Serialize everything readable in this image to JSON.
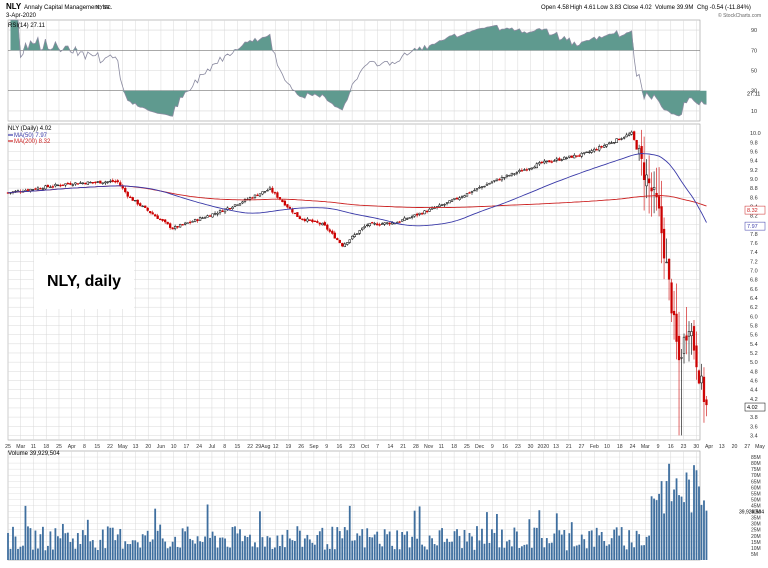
{
  "header": {
    "symbol": "NLY",
    "company": "Annaly Capital Management, Inc.",
    "exchange": "NYSE",
    "date": "3-Apr-2020",
    "open": "Open 4.58",
    "high": "High 4.61",
    "low": "Low 3.83",
    "close": "Close 4.02",
    "volume": "Volume 39.9M",
    "change": "Chg -0.54 (-11.84%)",
    "watermark": "© StockCharts.com"
  },
  "annotation": "NLY, daily",
  "colors": {
    "up": "#000000",
    "down": "#cc0000",
    "ma50": "#3a3aa8",
    "ma200": "#cc2222",
    "rsi_line": "#8a8aa0",
    "rsi_fill": "#5f9a8f",
    "volume_bar": "#3f6f9f",
    "grid": "#d8d8d8",
    "panel_border": "#999999"
  },
  "chart_data": {
    "type": "candlestick",
    "title": "NLY (Daily) 4.02",
    "price_axis": {
      "ylim": [
        3.3,
        10.2
      ],
      "ticks": [
        "10.0",
        "9.8",
        "9.6",
        "9.4",
        "9.2",
        "9.0",
        "8.8",
        "8.6",
        "8.4",
        "8.2",
        "8.0",
        "7.8",
        "7.6",
        "7.4",
        "7.2",
        "7.0",
        "6.8",
        "6.6",
        "6.4",
        "6.2",
        "6.0",
        "5.8",
        "5.6",
        "5.4",
        "5.2",
        "5.0",
        "4.8",
        "4.6",
        "4.4",
        "4.2",
        "4.0",
        "3.8",
        "3.6",
        "3.4"
      ],
      "markers": [
        {
          "label": "8.32",
          "value": 8.32,
          "color": "#cc2222"
        },
        {
          "label": "7.97",
          "value": 7.97,
          "color": "#3a3aa8"
        },
        {
          "label": "4.02",
          "value": 4.02,
          "color": "#000000"
        }
      ]
    },
    "x_axis": {
      "labels": [
        "25",
        "Mar",
        "11",
        "18",
        "25",
        "Apr",
        "8",
        "15",
        "22",
        "May",
        "13",
        "20",
        "Jun",
        "10",
        "17",
        "24",
        "Jul",
        "8",
        "15",
        "22",
        "29Aug",
        "12",
        "19",
        "26",
        "Sep",
        "9",
        "16",
        "23",
        "Oct",
        "7",
        "14",
        "21",
        "28",
        "Nov",
        "11",
        "18",
        "25",
        "Dec",
        "9",
        "16",
        "23",
        "30",
        "2020",
        "13",
        "21",
        "27",
        "Feb",
        "10",
        "18",
        "24",
        "Mar",
        "9",
        "16",
        "23",
        "30",
        "Apr",
        "13",
        "20",
        "27",
        "May"
      ]
    },
    "rsi": {
      "label": "RSI(14) 27.11",
      "ylim": [
        0,
        100
      ],
      "levels": [
        70,
        50,
        30
      ],
      "ticks": [
        "90",
        "70",
        "50",
        "30",
        "10"
      ],
      "marker": "27.11"
    },
    "ma_legend": [
      {
        "name": "NLY (Daily) 4.02",
        "color": "#000000"
      },
      {
        "name": "MA(50) 7.97",
        "color": "#3a3aa8"
      },
      {
        "name": "MA(200) 8.32",
        "color": "#cc2222"
      }
    ],
    "volume": {
      "label": "Volume 39,929,504",
      "ylim": [
        0,
        90000000
      ],
      "ticks": [
        "85M",
        "80M",
        "75M",
        "70M",
        "65M",
        "60M",
        "55M",
        "50M",
        "45M",
        "40M",
        "35M",
        "30M",
        "25M",
        "20M",
        "15M",
        "10M",
        "5M"
      ],
      "marker": "39,929,504"
    },
    "trend_points_close": [
      {
        "t": "2019-02-25",
        "v": 8.7
      },
      {
        "t": "2019-04-01",
        "v": 8.9
      },
      {
        "t": "2019-04-29",
        "v": 8.95
      },
      {
        "t": "2019-05-06",
        "v": 8.6
      },
      {
        "t": "2019-05-31",
        "v": 7.92
      },
      {
        "t": "2019-06-28",
        "v": 8.3
      },
      {
        "t": "2019-07-26",
        "v": 8.78
      },
      {
        "t": "2019-08-12",
        "v": 8.15
      },
      {
        "t": "2019-08-26",
        "v": 8.0
      },
      {
        "t": "2019-09-06",
        "v": 7.55
      },
      {
        "t": "2019-09-20",
        "v": 8.0
      },
      {
        "t": "2019-10-07",
        "v": 8.05
      },
      {
        "t": "2019-11-04",
        "v": 8.45
      },
      {
        "t": "2019-12-02",
        "v": 8.95
      },
      {
        "t": "2019-12-30",
        "v": 9.35
      },
      {
        "t": "2020-01-24",
        "v": 9.55
      },
      {
        "t": "2020-02-20",
        "v": 10.0
      },
      {
        "t": "2020-02-27",
        "v": 9.15
      },
      {
        "t": "2020-03-06",
        "v": 8.4
      },
      {
        "t": "2020-03-12",
        "v": 6.8
      },
      {
        "t": "2020-03-18",
        "v": 5.0
      },
      {
        "t": "2020-03-24",
        "v": 5.9
      },
      {
        "t": "2020-03-31",
        "v": 4.5
      },
      {
        "t": "2020-04-03",
        "v": 4.02
      }
    ]
  }
}
